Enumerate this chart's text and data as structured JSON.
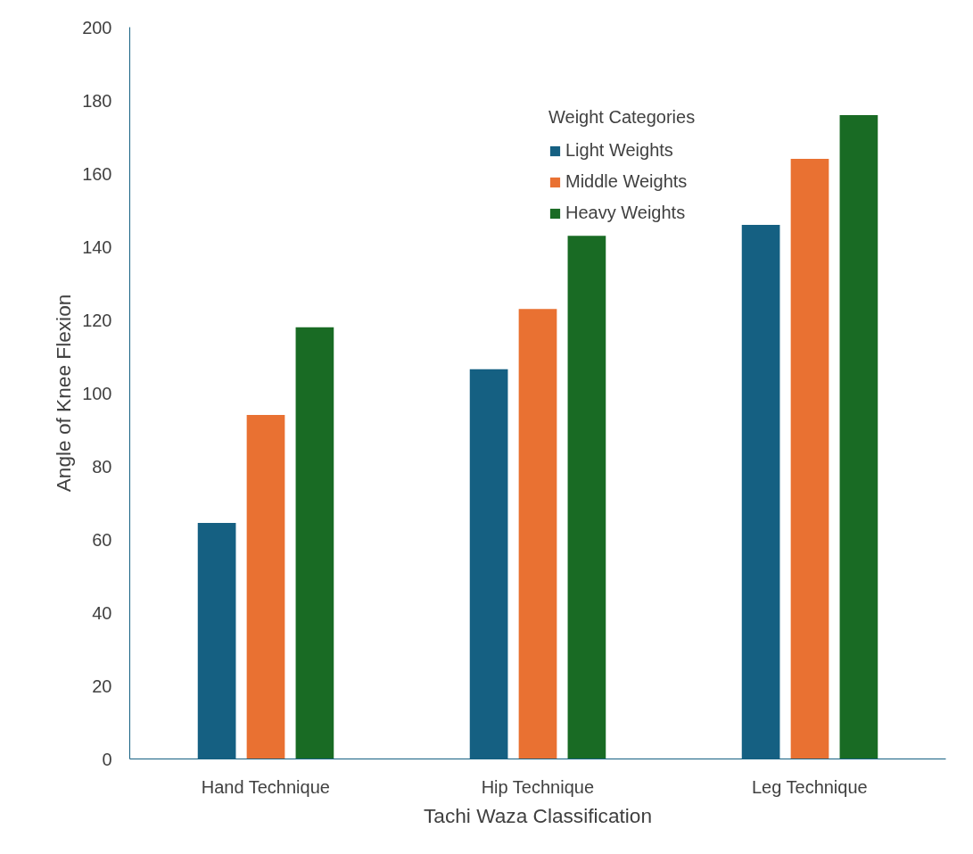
{
  "chart_data": {
    "type": "bar",
    "xlabel": "Tachi Waza Classification",
    "ylabel": "Angle of Knee Flexion",
    "categories": [
      "Hand Technique",
      "Hip Technique",
      "Leg Technique"
    ],
    "series": [
      {
        "name": "Light Weights",
        "color": "#156082",
        "values": [
          64.5,
          106.5,
          146
        ]
      },
      {
        "name": "Middle Weights",
        "color": "#e97132",
        "values": [
          94,
          123,
          164
        ]
      },
      {
        "name": "Heavy Weights",
        "color": "#196b24",
        "values": [
          118,
          143,
          176
        ]
      }
    ],
    "ylim": [
      0,
      200
    ],
    "yticks": [
      0,
      20,
      40,
      60,
      80,
      100,
      120,
      140,
      160,
      180,
      200
    ],
    "legend": "top",
    "legend_title": "Weight Categories",
    "grid": false
  }
}
